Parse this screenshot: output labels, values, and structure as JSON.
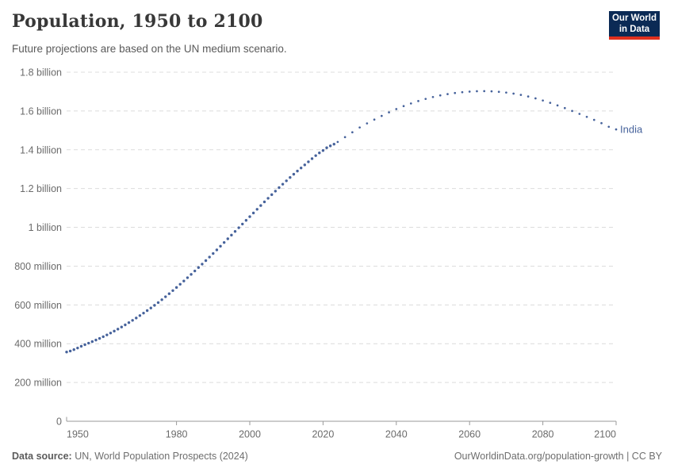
{
  "header": {
    "title": "Population, 1950 to 2100",
    "subtitle": "Future projections are based on the UN medium scenario.",
    "logo": {
      "line1": "Our World",
      "line2": "in Data",
      "background_color": "#0b2a55",
      "accent_color": "#e0301e"
    }
  },
  "footer": {
    "source_label": "Data source:",
    "source_text": " UN, World Population Prospects (2024)",
    "credit": "OurWorldinData.org/population-growth | CC BY"
  },
  "chart_data": {
    "type": "line",
    "title": "Population, 1950 to 2100",
    "subtitle": "Future projections are based on the UN medium scenario.",
    "grid": true,
    "xlim": [
      1950,
      2100
    ],
    "ylim_millions": [
      0,
      1800
    ],
    "x_ticks": [
      1950,
      1980,
      2000,
      2020,
      2040,
      2060,
      2080,
      2100
    ],
    "y_ticks": [
      {
        "value_millions": 0,
        "label": "0"
      },
      {
        "value_millions": 200,
        "label": "200 million"
      },
      {
        "value_millions": 400,
        "label": "400 million"
      },
      {
        "value_millions": 600,
        "label": "600 million"
      },
      {
        "value_millions": 800,
        "label": "800 million"
      },
      {
        "value_millions": 1000,
        "label": "1 billion"
      },
      {
        "value_millions": 1200,
        "label": "1.2 billion"
      },
      {
        "value_millions": 1400,
        "label": "1.4 billion"
      },
      {
        "value_millions": 1600,
        "label": "1.6 billion"
      },
      {
        "value_millions": 1800,
        "label": "1.8 billion"
      }
    ],
    "series": [
      {
        "name": "India",
        "color": "#46629b",
        "historical_end_year": 2023,
        "projection_style": "dotted",
        "points_millions": [
          [
            1950,
            357
          ],
          [
            1955,
            395
          ],
          [
            1960,
            436
          ],
          [
            1965,
            486
          ],
          [
            1970,
            545
          ],
          [
            1975,
            612
          ],
          [
            1980,
            690
          ],
          [
            1985,
            775
          ],
          [
            1990,
            865
          ],
          [
            1995,
            960
          ],
          [
            2000,
            1055
          ],
          [
            2005,
            1150
          ],
          [
            2010,
            1240
          ],
          [
            2015,
            1322
          ],
          [
            2020,
            1396
          ],
          [
            2023,
            1429
          ],
          [
            2025,
            1455
          ],
          [
            2030,
            1515
          ],
          [
            2035,
            1565
          ],
          [
            2040,
            1610
          ],
          [
            2045,
            1645
          ],
          [
            2050,
            1672
          ],
          [
            2055,
            1690
          ],
          [
            2060,
            1700
          ],
          [
            2065,
            1702
          ],
          [
            2070,
            1695
          ],
          [
            2075,
            1679
          ],
          [
            2080,
            1654
          ],
          [
            2085,
            1622
          ],
          [
            2090,
            1585
          ],
          [
            2095,
            1546
          ],
          [
            2100,
            1505
          ]
        ]
      }
    ],
    "axis_color": "#9a9a9a",
    "gridline_color": "#dcdcdc",
    "tick_label_color": "#6b6b6b"
  }
}
